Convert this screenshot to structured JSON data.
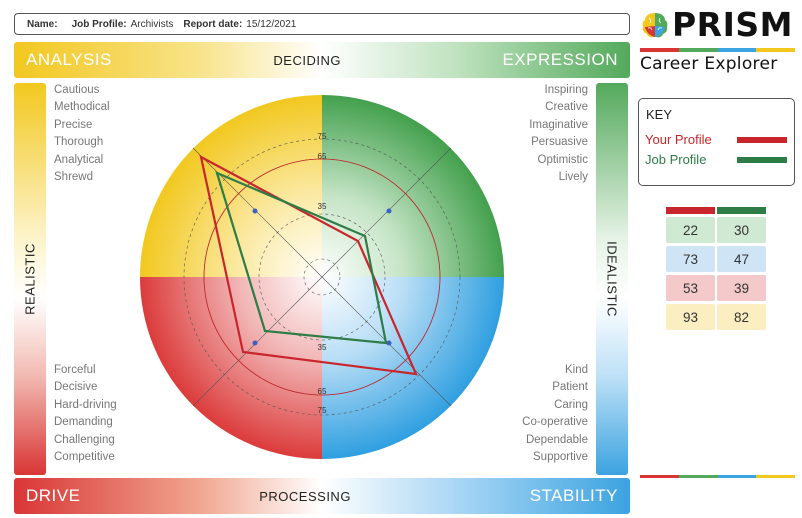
{
  "header": {
    "name_label": "Name:",
    "job_profile_label": "Job Profile:",
    "job_profile_value": "Archivists",
    "report_date_label": "Report date:",
    "report_date_value": "15/12/2021"
  },
  "bands": {
    "top": {
      "left": "ANALYSIS",
      "center": "DECIDING",
      "right": "EXPRESSION"
    },
    "bottom": {
      "left": "DRIVE",
      "center": "PROCESSING",
      "right": "STABILITY"
    },
    "left_vertical": "REALISTIC",
    "right_vertical": "IDEALISTIC"
  },
  "traits": {
    "analysis": [
      "Cautious",
      "Methodical",
      "Precise",
      "Thorough",
      "Analytical",
      "Shrewd"
    ],
    "expression": [
      "Inspiring",
      "Creative",
      "Imaginative",
      "Persuasive",
      "Optimistic",
      "Lively"
    ],
    "drive": [
      "Forceful",
      "Decisive",
      "Hard-driving",
      "Demanding",
      "Challenging",
      "Competitive"
    ],
    "stability": [
      "Kind",
      "Patient",
      "Caring",
      "Co-operative",
      "Dependable",
      "Supportive"
    ]
  },
  "logo": {
    "brand": "PRISM",
    "subtitle": "Career Explorer"
  },
  "key": {
    "title": "KEY",
    "your_profile_label": "Your Profile",
    "job_profile_label": "Job Profile"
  },
  "colors": {
    "your_profile": "#c8262c",
    "job_profile": "#2e7d47",
    "analysis": "#f2c81f",
    "expression": "#53a95b",
    "drive": "#d93535",
    "stability": "#3ba3e0"
  },
  "radar": {
    "ring_labels": [
      "35",
      "65",
      "75"
    ]
  },
  "scores": [
    {
      "your": "22",
      "job": "30",
      "bg": "#cfe9d2"
    },
    {
      "your": "73",
      "job": "47",
      "bg": "#cfe5f6"
    },
    {
      "your": "53",
      "job": "39",
      "bg": "#f3c9c9"
    },
    {
      "your": "93",
      "job": "82",
      "bg": "#fbefc2"
    }
  ]
}
